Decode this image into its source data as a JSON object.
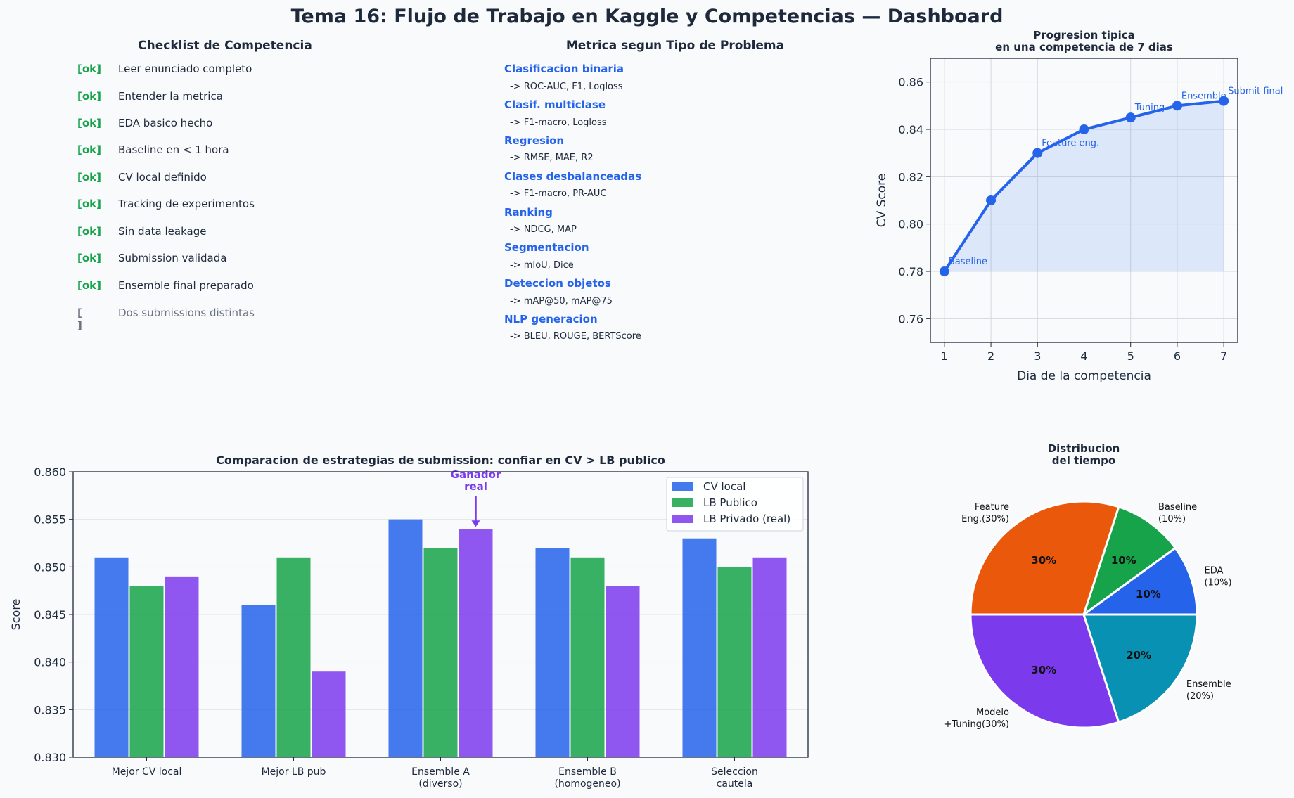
{
  "title": "Tema 16: Flujo de Trabajo en Kaggle y Competencias — Dashboard",
  "checklist": {
    "title": "Checklist de Competencia",
    "items": [
      {
        "mark": "[ok]",
        "label": "Leer enunciado completo",
        "done": true
      },
      {
        "mark": "[ok]",
        "label": "Entender la metrica",
        "done": true
      },
      {
        "mark": "[ok]",
        "label": "EDA basico hecho",
        "done": true
      },
      {
        "mark": "[ok]",
        "label": "Baseline en < 1 hora",
        "done": true
      },
      {
        "mark": "[ok]",
        "label": "CV local definido",
        "done": true
      },
      {
        "mark": "[ok]",
        "label": "Tracking de experimentos",
        "done": true
      },
      {
        "mark": "[ok]",
        "label": "Sin data leakage",
        "done": true
      },
      {
        "mark": "[ok]",
        "label": "Submission validada",
        "done": true
      },
      {
        "mark": "[ok]",
        "label": "Ensemble final preparado",
        "done": true
      },
      {
        "mark": "[ ]",
        "label": "Dos submissions distintas",
        "done": false
      }
    ]
  },
  "metrics": {
    "title": "Metrica segun Tipo de Problema",
    "items": [
      {
        "problem": "Clasificacion binaria",
        "metrics": "-> ROC-AUC, F1, Logloss"
      },
      {
        "problem": "Clasif. multiclase",
        "metrics": "-> F1-macro, Logloss"
      },
      {
        "problem": "Regresion",
        "metrics": "-> RMSE, MAE, R2"
      },
      {
        "problem": "Clases desbalanceadas",
        "metrics": "-> F1-macro, PR-AUC"
      },
      {
        "problem": "Ranking",
        "metrics": "-> NDCG, MAP"
      },
      {
        "problem": "Segmentacion",
        "metrics": "-> mIoU, Dice"
      },
      {
        "problem": "Deteccion objetos",
        "metrics": "-> mAP@50, mAP@75"
      },
      {
        "problem": "NLP generacion",
        "metrics": "-> BLEU, ROUGE, BERTScore"
      }
    ]
  },
  "colors": {
    "blue": "#2563eb",
    "green": "#16a34a",
    "purple": "#7c3aed",
    "orange": "#ea580c",
    "teal": "#0891b2",
    "text": "#1e293b"
  },
  "chart_data": [
    {
      "type": "line",
      "title": "Progresion tipica\nen una competencia de 7 dias",
      "xlabel": "Dia de la competencia",
      "ylabel": "CV Score",
      "x": [
        1,
        2,
        3,
        4,
        5,
        6,
        7
      ],
      "y": [
        0.78,
        0.81,
        0.83,
        0.84,
        0.845,
        0.85,
        0.852
      ],
      "annotations": [
        {
          "x": 1,
          "text": "Baseline"
        },
        {
          "x": 3,
          "text": "Feature eng."
        },
        {
          "x": 5,
          "text": "Tuning"
        },
        {
          "x": 6,
          "text": "Ensemble"
        },
        {
          "x": 7,
          "text": "Submit final"
        }
      ],
      "xlim": [
        0.7,
        7.3
      ],
      "ylim": [
        0.75,
        0.87
      ],
      "yticks": [
        0.76,
        0.78,
        0.8,
        0.82,
        0.84,
        0.86
      ],
      "fill_baseline": 0.78,
      "grid": true,
      "color": "#2563eb"
    },
    {
      "type": "bar",
      "title": "Comparacion de estrategias de submission: confiar en CV > LB publico",
      "ylabel": "Score",
      "categories": [
        "Mejor CV local",
        "Mejor LB pub",
        "Ensemble A\n(diverso)",
        "Ensemble B\n(homogeneo)",
        "Seleccion\ncautela"
      ],
      "series": [
        {
          "name": "CV local",
          "values": [
            0.851,
            0.846,
            0.855,
            0.852,
            0.853
          ],
          "color": "#2563eb"
        },
        {
          "name": "LB Publico",
          "values": [
            0.848,
            0.851,
            0.852,
            0.851,
            0.85
          ],
          "color": "#16a34a"
        },
        {
          "name": "LB Privado (real)",
          "values": [
            0.849,
            0.839,
            0.854,
            0.848,
            0.851
          ],
          "color": "#7c3aed"
        }
      ],
      "ylim": [
        0.83,
        0.86
      ],
      "yticks": [
        0.83,
        0.835,
        0.84,
        0.845,
        0.85,
        0.855,
        0.86
      ],
      "annotation": {
        "text": "Ganador\nreal",
        "category_index": 2,
        "series_index": 2
      },
      "legend": "top-right",
      "grid": true
    },
    {
      "type": "pie",
      "title": "Distribucion\ndel tiempo",
      "slices": [
        {
          "label": "EDA\n(10%)",
          "value": 10,
          "pct": "10%",
          "color": "#2563eb"
        },
        {
          "label": "Baseline\n(10%)",
          "value": 10,
          "pct": "10%",
          "color": "#16a34a"
        },
        {
          "label": "Feature\nEng.(30%)",
          "value": 30,
          "pct": "30%",
          "color": "#ea580c"
        },
        {
          "label": "Modelo\n+Tuning(30%)",
          "value": 30,
          "pct": "30%",
          "color": "#7c3aed"
        },
        {
          "label": "Ensemble\n(20%)",
          "value": 20,
          "pct": "20%",
          "color": "#0891b2"
        }
      ]
    }
  ]
}
